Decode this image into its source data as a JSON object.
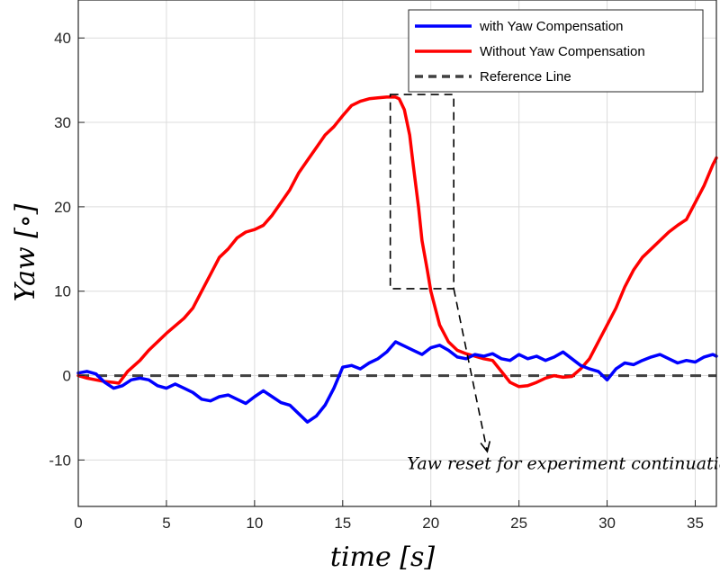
{
  "chart_data": {
    "type": "line",
    "title": "",
    "xlabel": "time [s]",
    "ylabel": "Yaw [∘]",
    "xlim": [
      0,
      36.2
    ],
    "ylim": [
      -15.5,
      44.5
    ],
    "xticks": [
      0,
      5,
      10,
      15,
      20,
      25,
      30,
      35
    ],
    "yticks": [
      -10,
      0,
      10,
      20,
      30,
      40
    ],
    "grid": true,
    "legend_position": "top-right",
    "series": [
      {
        "name": "with Yaw Compensation",
        "color": "#0000ff",
        "x": [
          0,
          0.5,
          1.0,
          1.5,
          2.0,
          2.5,
          3.0,
          3.5,
          4.0,
          4.5,
          5.0,
          5.5,
          6.0,
          6.5,
          7.0,
          7.5,
          8.0,
          8.5,
          9.0,
          9.5,
          10.0,
          10.5,
          11.0,
          11.5,
          12.0,
          12.5,
          13.0,
          13.5,
          14.0,
          14.5,
          15.0,
          15.5,
          16.0,
          16.5,
          17.0,
          17.5,
          18.0,
          18.5,
          19.0,
          19.5,
          20.0,
          20.5,
          21.0,
          21.5,
          22.0,
          22.5,
          23.0,
          23.5,
          24.0,
          24.5,
          25.0,
          25.5,
          26.0,
          26.5,
          27.0,
          27.5,
          28.0,
          28.5,
          29.0,
          29.5,
          30.0,
          30.5,
          31.0,
          31.5,
          32.0,
          32.5,
          33.0,
          33.5,
          34.0,
          34.5,
          35.0,
          35.5,
          36.0,
          36.2
        ],
        "values": [
          0.3,
          0.5,
          0.2,
          -0.8,
          -1.5,
          -1.2,
          -0.5,
          -0.3,
          -0.5,
          -1.2,
          -1.5,
          -1.0,
          -1.5,
          -2.0,
          -2.8,
          -3.0,
          -2.5,
          -2.3,
          -2.8,
          -3.3,
          -2.5,
          -1.8,
          -2.5,
          -3.2,
          -3.5,
          -4.5,
          -5.5,
          -4.8,
          -3.5,
          -1.5,
          1.0,
          1.2,
          0.8,
          1.5,
          2.0,
          2.8,
          4.0,
          3.5,
          3.0,
          2.5,
          3.3,
          3.6,
          3.0,
          2.2,
          2.0,
          2.5,
          2.3,
          2.6,
          2.0,
          1.8,
          2.5,
          2.0,
          2.3,
          1.8,
          2.2,
          2.8,
          2.0,
          1.2,
          0.8,
          0.5,
          -0.5,
          0.8,
          1.5,
          1.3,
          1.8,
          2.2,
          2.5,
          2.0,
          1.5,
          1.8,
          1.6,
          2.2,
          2.5,
          2.3
        ]
      },
      {
        "name": "Without Yaw Compensation",
        "color": "#ff0000",
        "x": [
          0,
          0.5,
          1.0,
          1.5,
          2.0,
          2.3,
          2.8,
          3.5,
          4.0,
          5.0,
          6.0,
          6.5,
          7.0,
          7.5,
          8.0,
          8.5,
          9.0,
          9.5,
          10.0,
          10.5,
          11.0,
          11.5,
          12.0,
          12.5,
          13.0,
          13.5,
          14.0,
          14.5,
          15.0,
          15.5,
          16.0,
          16.5,
          17.0,
          17.5,
          18.0,
          18.2,
          18.5,
          18.8,
          19.0,
          19.3,
          19.5,
          19.8,
          20.0,
          20.5,
          21.0,
          21.5,
          22.0,
          22.5,
          23.0,
          23.5,
          24.0,
          24.5,
          25.0,
          25.5,
          26.0,
          26.5,
          27.0,
          27.5,
          28.0,
          28.5,
          29.0,
          29.5,
          30.0,
          30.5,
          31.0,
          31.5,
          32.0,
          32.5,
          33.0,
          33.5,
          34.0,
          34.5,
          35.0,
          35.5,
          36.0,
          36.2
        ],
        "values": [
          0,
          -0.3,
          -0.5,
          -0.7,
          -0.8,
          -0.9,
          0.5,
          1.8,
          3.0,
          5.0,
          6.8,
          8.0,
          10.0,
          12.0,
          14.0,
          15.0,
          16.3,
          17.0,
          17.3,
          17.8,
          19.0,
          20.5,
          22.0,
          24.0,
          25.5,
          27.0,
          28.5,
          29.5,
          30.8,
          32.0,
          32.5,
          32.8,
          32.9,
          33.0,
          33.0,
          32.8,
          31.5,
          28.5,
          25.0,
          20.0,
          16.0,
          12.5,
          10.0,
          6.0,
          4.0,
          3.0,
          2.6,
          2.3,
          2.0,
          1.8,
          0.5,
          -0.8,
          -1.3,
          -1.2,
          -0.8,
          -0.3,
          0,
          -0.2,
          -0.1,
          0.8,
          2.0,
          4.0,
          6.0,
          8.0,
          10.5,
          12.5,
          14.0,
          15.0,
          16.0,
          17.0,
          17.8,
          18.5,
          20.5,
          22.5,
          25.0,
          25.8
        ]
      },
      {
        "name": "Reference Line",
        "color": "#404040",
        "style": "dashed",
        "x": [
          0,
          36.2
        ],
        "values": [
          0,
          0
        ]
      }
    ],
    "annotations": [
      {
        "type": "dashed-box",
        "x_range": [
          17.7,
          21.3
        ],
        "y_range": [
          10.3,
          33.3
        ]
      },
      {
        "type": "dashed-arrow",
        "from": [
          21.3,
          10.3
        ],
        "to": [
          23.2,
          -9.0
        ]
      },
      {
        "type": "text",
        "text": "Yaw reset for experiment continuation",
        "x": 28.1,
        "y": -11.1
      }
    ]
  }
}
